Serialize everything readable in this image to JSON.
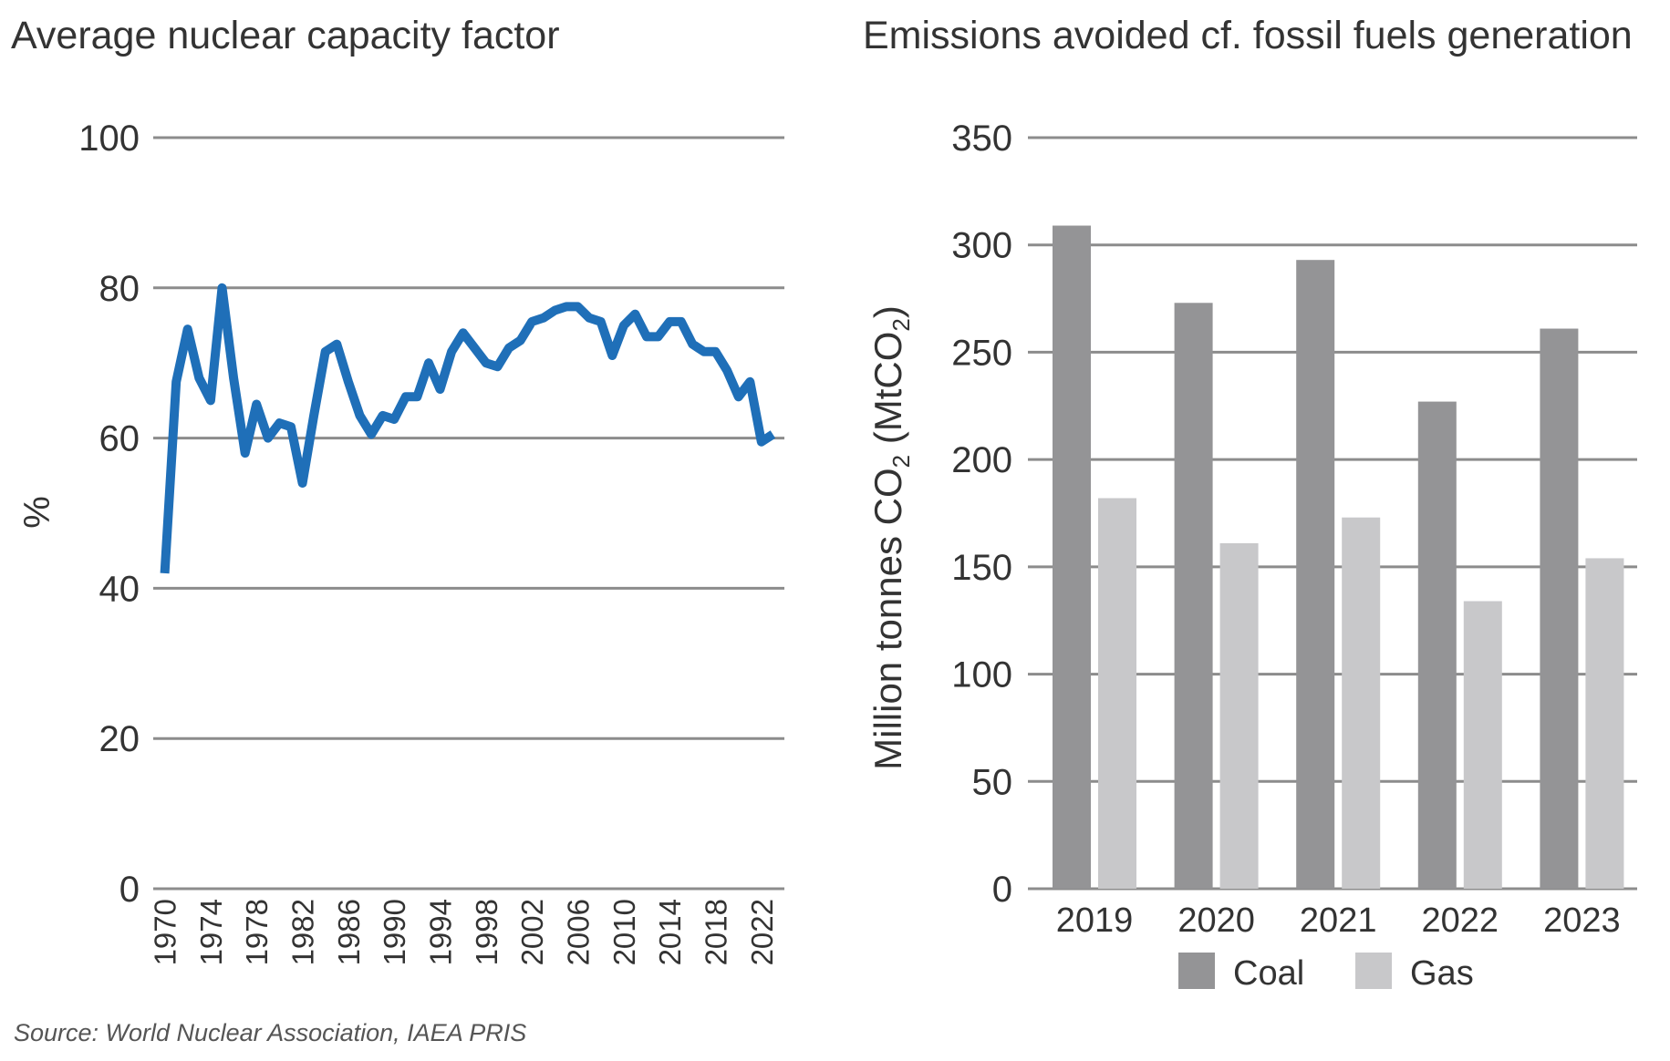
{
  "source": "Source: World Nuclear Association, IAEA PRIS",
  "chart_data": [
    {
      "type": "line",
      "title": "Average nuclear capacity factor",
      "xlabel": "",
      "ylabel": "%",
      "ylim": [
        0,
        100
      ],
      "yticks": [
        "0",
        "20",
        "40",
        "60",
        "80",
        "100"
      ],
      "xticks": [
        "1970",
        "1974",
        "1978",
        "1982",
        "1986",
        "1990",
        "1994",
        "1998",
        "2002",
        "2006",
        "2010",
        "2014",
        "2018",
        "2022"
      ],
      "grid": true,
      "color": "#1f6fb8",
      "x": [
        1970,
        1971,
        1972,
        1973,
        1974,
        1975,
        1976,
        1977,
        1978,
        1979,
        1980,
        1981,
        1982,
        1983,
        1984,
        1985,
        1986,
        1987,
        1988,
        1989,
        1990,
        1991,
        1992,
        1993,
        1994,
        1995,
        1996,
        1997,
        1998,
        1999,
        2000,
        2001,
        2002,
        2003,
        2004,
        2005,
        2006,
        2007,
        2008,
        2009,
        2010,
        2011,
        2012,
        2013,
        2014,
        2015,
        2016,
        2017,
        2018,
        2019,
        2020,
        2021,
        2022,
        2023
      ],
      "values": [
        42,
        67.5,
        74.5,
        68,
        65,
        80,
        68,
        58,
        64.5,
        60,
        62,
        61.5,
        54,
        63,
        71.5,
        72.5,
        67.5,
        63,
        60.5,
        63,
        62.5,
        65.5,
        65.5,
        70,
        66.5,
        71.5,
        74,
        72,
        70,
        69.5,
        72,
        73,
        75.5,
        76,
        77,
        77.5,
        77.5,
        76,
        75.5,
        71,
        75,
        76.5,
        73.5,
        73.5,
        75.5,
        75.5,
        72.5,
        71.5,
        71.5,
        69,
        65.5,
        67.5,
        59.5,
        60.5
      ]
    },
    {
      "type": "bar",
      "title": "Emissions avoided cf. fossil fuels generation",
      "xlabel": "",
      "ylabel_main": "Million tonnes CO",
      "ylabel_sub1": "2",
      "ylabel_paren": " (MtCO",
      "ylabel_sub2": "2",
      "ylabel_close": ")",
      "ylim": [
        0,
        350
      ],
      "yticks": [
        "0",
        "50",
        "100",
        "150",
        "200",
        "250",
        "300",
        "350"
      ],
      "grid": true,
      "legend_position": "bottom",
      "categories": [
        "2019",
        "2020",
        "2021",
        "2022",
        "2023"
      ],
      "series": [
        {
          "name": "Coal",
          "color": "#949496",
          "values": [
            309,
            273,
            293,
            227,
            261
          ]
        },
        {
          "name": "Gas",
          "color": "#c8c8ca",
          "values": [
            182,
            161,
            173,
            134,
            154
          ]
        }
      ]
    }
  ]
}
